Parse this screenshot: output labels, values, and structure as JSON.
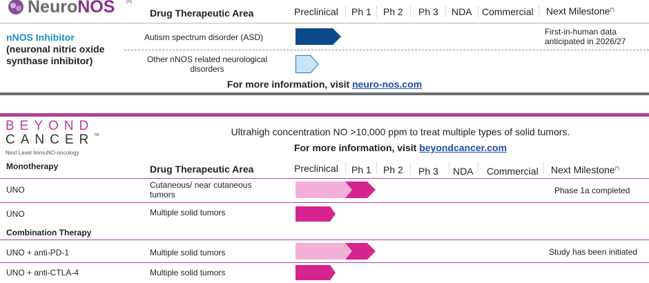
{
  "neuronos": {
    "logo_text_a": "Neuro",
    "logo_text_b": "NOS",
    "logo_tm": "(R)",
    "header": {
      "area": "Drug Therapeutic Area",
      "preclinical": "Preclinical",
      "ph1": "Ph 1",
      "ph2": "Ph 2",
      "ph3": "Ph 3",
      "nda": "NDA",
      "commercial": "Commercial",
      "milestone": "Next Milestone",
      "milestone_sup": "(*)"
    },
    "program_line1": "nNOS Inhibitor",
    "program_line2": "(neuronal nitric oxide",
    "program_line3": "synthase inhibitor)",
    "rows": [
      {
        "area": "Autism spectrum disorder (ASD)",
        "milestone_line1": "First-in-human data",
        "milestone_line2": "anticipated in 2026/27",
        "progress": "Preclinical"
      },
      {
        "area_line1": "Other nNOS related neurological",
        "area_line2": "disorders",
        "progress": "Preclinical"
      }
    ],
    "info_prefix": "For more information, visit ",
    "info_link": "neuro-nos.com"
  },
  "beyond": {
    "logo_line1": "BEYOND",
    "logo_line2": "CANCER",
    "logo_tm": "TM",
    "logo_tagline": "Next Level ImmuNO-oncology",
    "headline": "Ultrahigh concentration NO >10,000 ppm to treat multiple types of solid tumors.",
    "info_prefix": "For more information, visit ",
    "info_link": "beyondcancer.com",
    "header": {
      "section": "Monotherapy",
      "area": "Drug Therapeutic Area",
      "preclinical": "Preclinical",
      "ph1": "Ph 1",
      "ph2": "Ph 2",
      "ph3": "Ph 3",
      "nda": "NDA",
      "commercial": "Commercial",
      "milestone": "Next Milestone",
      "milestone_sup": "(*)"
    },
    "mono_rows": [
      {
        "drug": "UNO",
        "area_line1": "Cutaneous/ near cutaneous",
        "area_line2": "tumors",
        "milestone": "Phase 1a completed",
        "progress": "Ph 1"
      },
      {
        "drug": "UNO",
        "area": "Multiple solid tumors",
        "milestone": "",
        "progress": "Preclinical"
      }
    ],
    "combo_label": "Combination Therapy",
    "combo_rows": [
      {
        "drug": "UNO + anti-PD-1",
        "area": "Multiple solid tumors",
        "milestone": "Study has been initiated",
        "progress": "Ph 1"
      },
      {
        "drug": "UNO + anti-CTLA-4",
        "area": "Multiple solid tumors",
        "milestone": "",
        "progress": "Preclinical"
      }
    ]
  },
  "colors": {
    "neuro_dark": "#0d4a8b",
    "neuro_light": "#c7e3f7",
    "magenta": "#d6248f",
    "pink": "#f3b1d8",
    "divider_gray": "#6e6e6e",
    "divider_purple": "#b33fa0"
  }
}
